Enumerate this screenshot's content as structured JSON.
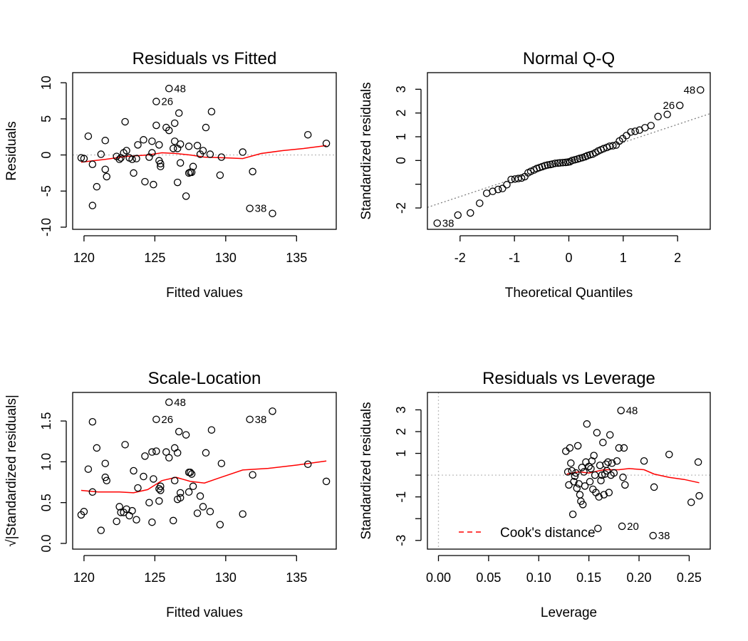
{
  "chart_data": [
    {
      "id": "rvf",
      "type": "scatter",
      "title": "Residuals vs Fitted",
      "xlabel": "Fitted values",
      "ylabel": "Residuals",
      "xlim": [
        119.2,
        137.8
      ],
      "ylim": [
        -10.3,
        11.4
      ],
      "xticks": [
        120,
        125,
        130,
        135
      ],
      "yticks": [
        -10,
        -5,
        0,
        5,
        10
      ],
      "ytick_rotated": true,
      "reference_lines": [
        {
          "axis": "h",
          "value": 0,
          "style": "dotted",
          "color": "#bebebe"
        }
      ],
      "points": [
        [
          119.8,
          -0.4
        ],
        [
          120.0,
          -0.5
        ],
        [
          120.3,
          2.6
        ],
        [
          120.6,
          -7.0
        ],
        [
          120.6,
          -1.3
        ],
        [
          120.9,
          -4.4
        ],
        [
          121.2,
          0.1
        ],
        [
          121.5,
          2.0
        ],
        [
          121.5,
          -2.0
        ],
        [
          121.6,
          -3.0
        ],
        [
          122.3,
          -0.2
        ],
        [
          122.5,
          -0.6
        ],
        [
          122.6,
          -0.4
        ],
        [
          122.8,
          0.3
        ],
        [
          122.9,
          4.6
        ],
        [
          123.0,
          0.6
        ],
        [
          123.2,
          -0.4
        ],
        [
          123.4,
          -0.6
        ],
        [
          123.5,
          -2.5
        ],
        [
          123.7,
          -0.5
        ],
        [
          123.8,
          1.4
        ],
        [
          124.2,
          2.1
        ],
        [
          124.3,
          -3.7
        ],
        [
          124.6,
          -0.3
        ],
        [
          124.8,
          1.9
        ],
        [
          124.8,
          0.3
        ],
        [
          124.9,
          -4.1
        ],
        [
          125.1,
          7.4
        ],
        [
          125.1,
          4.1
        ],
        [
          125.3,
          1.4
        ],
        [
          125.3,
          -0.8
        ],
        [
          125.4,
          -1.6
        ],
        [
          125.4,
          -1.2
        ],
        [
          125.8,
          3.8
        ],
        [
          126.0,
          9.2
        ],
        [
          126.0,
          3.4
        ],
        [
          126.3,
          0.9
        ],
        [
          126.4,
          4.4
        ],
        [
          126.4,
          1.9
        ],
        [
          126.6,
          0.9
        ],
        [
          126.6,
          -3.8
        ],
        [
          126.7,
          5.8
        ],
        [
          126.8,
          1.5
        ],
        [
          126.8,
          -1.1
        ],
        [
          127.2,
          -5.7
        ],
        [
          127.4,
          1.2
        ],
        [
          127.4,
          -2.5
        ],
        [
          127.5,
          -2.4
        ],
        [
          127.6,
          -2.4
        ],
        [
          127.7,
          -1.6
        ],
        [
          128.0,
          1.3
        ],
        [
          128.2,
          0.1
        ],
        [
          128.4,
          0.6
        ],
        [
          128.6,
          3.8
        ],
        [
          128.9,
          0.1
        ],
        [
          129.0,
          6.0
        ],
        [
          129.6,
          -2.8
        ],
        [
          129.7,
          -0.3
        ],
        [
          131.2,
          0.4
        ],
        [
          131.7,
          -7.4
        ],
        [
          131.9,
          -2.3
        ],
        [
          133.3,
          -8.1
        ],
        [
          135.8,
          2.8
        ],
        [
          137.1,
          1.6
        ]
      ],
      "labels": [
        {
          "text": "48",
          "x": 126.0,
          "y": 9.2
        },
        {
          "text": "26",
          "x": 125.1,
          "y": 7.4
        },
        {
          "text": "38",
          "x": 131.7,
          "y": -7.4
        }
      ],
      "smooth": [
        [
          119.8,
          -1.0
        ],
        [
          121.5,
          -0.6
        ],
        [
          123.0,
          -0.2
        ],
        [
          124.5,
          0.0
        ],
        [
          125.5,
          0.3
        ],
        [
          126.5,
          0.2
        ],
        [
          127.5,
          0.0
        ],
        [
          128.5,
          -0.3
        ],
        [
          130.0,
          -0.4
        ],
        [
          131.2,
          -0.5
        ],
        [
          132.5,
          0.2
        ],
        [
          134.0,
          0.6
        ],
        [
          135.5,
          0.9
        ],
        [
          137.1,
          1.3
        ]
      ]
    },
    {
      "id": "qq",
      "type": "scatter",
      "title": "Normal Q-Q",
      "xlabel": "Theoretical Quantiles",
      "ylabel": "Standardized residuals",
      "xlim": [
        -2.6,
        2.6
      ],
      "ylim": [
        -2.9,
        3.7
      ],
      "xticks": [
        -2,
        -1,
        0,
        1,
        2
      ],
      "yticks": [
        -2,
        -1,
        0,
        1,
        2,
        3
      ],
      "ytick_labels": [
        "-2",
        "",
        "0",
        "1",
        "2",
        "3"
      ],
      "ytick_rotated": true,
      "reference_lines": [
        {
          "axis": "ab",
          "intercept": 0,
          "slope": 0.76,
          "style": "dotted",
          "color": "#808080"
        }
      ],
      "points": [
        [
          -2.42,
          -2.64
        ],
        [
          -2.04,
          -2.3
        ],
        [
          -1.81,
          -2.21
        ],
        [
          -1.64,
          -1.8
        ],
        [
          -1.51,
          -1.38
        ],
        [
          -1.4,
          -1.3
        ],
        [
          -1.3,
          -1.22
        ],
        [
          -1.22,
          -1.18
        ],
        [
          -1.14,
          -1.02
        ],
        [
          -1.06,
          -0.8
        ],
        [
          -0.99,
          -0.78
        ],
        [
          -0.93,
          -0.76
        ],
        [
          -0.87,
          -0.74
        ],
        [
          -0.81,
          -0.68
        ],
        [
          -0.75,
          -0.52
        ],
        [
          -0.7,
          -0.46
        ],
        [
          -0.64,
          -0.4
        ],
        [
          -0.59,
          -0.34
        ],
        [
          -0.54,
          -0.3
        ],
        [
          -0.49,
          -0.26
        ],
        [
          -0.44,
          -0.22
        ],
        [
          -0.39,
          -0.19
        ],
        [
          -0.34,
          -0.17
        ],
        [
          -0.3,
          -0.15
        ],
        [
          -0.25,
          -0.12
        ],
        [
          -0.2,
          -0.11
        ],
        [
          -0.16,
          -0.1
        ],
        [
          -0.11,
          -0.09
        ],
        [
          -0.06,
          -0.08
        ],
        [
          -0.02,
          -0.07
        ],
        [
          0.02,
          -0.05
        ],
        [
          0.06,
          0.0
        ],
        [
          0.11,
          0.03
        ],
        [
          0.16,
          0.06
        ],
        [
          0.2,
          0.09
        ],
        [
          0.25,
          0.12
        ],
        [
          0.3,
          0.16
        ],
        [
          0.34,
          0.2
        ],
        [
          0.39,
          0.24
        ],
        [
          0.44,
          0.27
        ],
        [
          0.49,
          0.33
        ],
        [
          0.54,
          0.4
        ],
        [
          0.59,
          0.45
        ],
        [
          0.64,
          0.5
        ],
        [
          0.7,
          0.55
        ],
        [
          0.75,
          0.6
        ],
        [
          0.81,
          0.62
        ],
        [
          0.87,
          0.65
        ],
        [
          0.93,
          0.82
        ],
        [
          0.99,
          0.92
        ],
        [
          1.06,
          1.05
        ],
        [
          1.14,
          1.2
        ],
        [
          1.22,
          1.23
        ],
        [
          1.3,
          1.28
        ],
        [
          1.4,
          1.38
        ],
        [
          1.51,
          1.47
        ],
        [
          1.64,
          1.85
        ],
        [
          1.81,
          1.94
        ],
        [
          2.04,
          2.32
        ],
        [
          2.42,
          2.97
        ]
      ],
      "labels": [
        {
          "text": "48",
          "x": 2.42,
          "y": 2.97,
          "side": "left"
        },
        {
          "text": "26",
          "x": 2.04,
          "y": 2.32,
          "side": "left"
        },
        {
          "text": "38",
          "x": -2.42,
          "y": -2.64,
          "side": "right"
        }
      ]
    },
    {
      "id": "sl",
      "type": "scatter",
      "title": "Scale-Location",
      "xlabel": "Fitted values",
      "ylabel": "√|Standardized residuals|",
      "xlim": [
        119.2,
        137.8
      ],
      "ylim": [
        -0.07,
        1.85
      ],
      "xticks": [
        120,
        125,
        130,
        135
      ],
      "yticks": [
        0.0,
        0.5,
        1.0,
        1.5
      ],
      "ytick_labels": [
        "0.0",
        "0.5",
        "1.0",
        "1.5"
      ],
      "ytick_rotated": true,
      "points": [
        [
          119.8,
          0.35
        ],
        [
          120.0,
          0.39
        ],
        [
          120.3,
          0.91
        ],
        [
          120.6,
          1.49
        ],
        [
          120.6,
          0.63
        ],
        [
          120.9,
          1.17
        ],
        [
          121.2,
          0.16
        ],
        [
          121.5,
          0.98
        ],
        [
          121.5,
          0.81
        ],
        [
          121.6,
          0.77
        ],
        [
          122.3,
          0.27
        ],
        [
          122.5,
          0.45
        ],
        [
          122.6,
          0.38
        ],
        [
          122.8,
          0.38
        ],
        [
          122.9,
          1.21
        ],
        [
          123.0,
          0.42
        ],
        [
          123.2,
          0.34
        ],
        [
          123.4,
          0.4
        ],
        [
          123.5,
          0.89
        ],
        [
          123.7,
          0.29
        ],
        [
          123.8,
          0.68
        ],
        [
          124.2,
          0.82
        ],
        [
          124.3,
          1.07
        ],
        [
          124.6,
          0.5
        ],
        [
          124.8,
          1.12
        ],
        [
          124.8,
          0.26
        ],
        [
          124.9,
          0.79
        ],
        [
          125.1,
          1.52
        ],
        [
          125.1,
          1.13
        ],
        [
          125.3,
          0.67
        ],
        [
          125.3,
          0.52
        ],
        [
          125.4,
          0.7
        ],
        [
          125.4,
          0.65
        ],
        [
          125.8,
          1.12
        ],
        [
          126.0,
          1.73
        ],
        [
          126.0,
          1.05
        ],
        [
          126.3,
          0.28
        ],
        [
          126.4,
          1.17
        ],
        [
          126.4,
          0.77
        ],
        [
          126.6,
          0.54
        ],
        [
          126.6,
          1.11
        ],
        [
          126.7,
          1.37
        ],
        [
          126.8,
          0.56
        ],
        [
          126.8,
          0.62
        ],
        [
          127.2,
          1.33
        ],
        [
          127.4,
          0.63
        ],
        [
          127.4,
          0.87
        ],
        [
          127.5,
          0.87
        ],
        [
          127.6,
          0.85
        ],
        [
          127.7,
          0.7
        ],
        [
          128.0,
          0.37
        ],
        [
          128.2,
          0.58
        ],
        [
          128.4,
          0.45
        ],
        [
          128.6,
          1.11
        ],
        [
          128.9,
          0.39
        ],
        [
          129.0,
          1.39
        ],
        [
          129.6,
          0.23
        ],
        [
          129.7,
          0.98
        ],
        [
          131.2,
          0.36
        ],
        [
          131.7,
          1.52
        ],
        [
          131.9,
          0.84
        ],
        [
          133.3,
          1.62
        ],
        [
          135.8,
          0.97
        ],
        [
          137.1,
          0.76
        ]
      ],
      "labels": [
        {
          "text": "48",
          "x": 126.0,
          "y": 1.73
        },
        {
          "text": "26",
          "x": 125.1,
          "y": 1.52
        },
        {
          "text": "38",
          "x": 131.7,
          "y": 1.52
        }
      ],
      "smooth": [
        [
          119.8,
          0.65
        ],
        [
          121.0,
          0.63
        ],
        [
          122.5,
          0.63
        ],
        [
          123.5,
          0.62
        ],
        [
          124.5,
          0.66
        ],
        [
          125.5,
          0.77
        ],
        [
          126.5,
          0.81
        ],
        [
          127.5,
          0.76
        ],
        [
          128.5,
          0.74
        ],
        [
          129.5,
          0.8
        ],
        [
          131.2,
          0.9
        ],
        [
          133.0,
          0.92
        ],
        [
          135.0,
          0.96
        ],
        [
          137.1,
          1.01
        ]
      ]
    },
    {
      "id": "rvl",
      "type": "scatter",
      "title": "Residuals vs Leverage",
      "xlabel": "Leverage",
      "ylabel": "Standardized residuals",
      "xlim": [
        -0.011,
        0.271
      ],
      "ylim": [
        -3.4,
        3.8
      ],
      "xticks": [
        0.0,
        0.05,
        0.1,
        0.15,
        0.2,
        0.25
      ],
      "xtick_labels": [
        "0.00",
        "0.05",
        "0.10",
        "0.15",
        "0.20",
        "0.25"
      ],
      "yticks": [
        -3,
        -2,
        -1,
        0,
        1,
        2,
        3
      ],
      "ytick_labels": [
        "-3",
        "",
        "-1",
        "",
        "1",
        "2",
        "3"
      ],
      "ytick_rotated": true,
      "reference_lines": [
        {
          "axis": "h",
          "value": 0,
          "style": "dotted",
          "color": "#bebebe"
        },
        {
          "axis": "v",
          "value": 0,
          "style": "dotted",
          "color": "#bebebe"
        }
      ],
      "points": [
        [
          0.127,
          1.1
        ],
        [
          0.129,
          0.15
        ],
        [
          0.13,
          -0.45
        ],
        [
          0.131,
          1.25
        ],
        [
          0.132,
          0.55
        ],
        [
          0.133,
          0.2
        ],
        [
          0.134,
          -1.8
        ],
        [
          0.135,
          -0.3
        ],
        [
          0.136,
          -0.05
        ],
        [
          0.137,
          0.1
        ],
        [
          0.138,
          -0.6
        ],
        [
          0.139,
          1.35
        ],
        [
          0.14,
          -0.4
        ],
        [
          0.141,
          -0.9
        ],
        [
          0.142,
          -1.2
        ],
        [
          0.143,
          0.35
        ],
        [
          0.144,
          -1.35
        ],
        [
          0.145,
          0.15
        ],
        [
          0.146,
          -0.5
        ],
        [
          0.147,
          0.6
        ],
        [
          0.148,
          2.35
        ],
        [
          0.15,
          0.4
        ],
        [
          0.151,
          -0.3
        ],
        [
          0.152,
          0.3
        ],
        [
          0.153,
          0.65
        ],
        [
          0.154,
          -0.65
        ],
        [
          0.155,
          0.9
        ],
        [
          0.156,
          0.0
        ],
        [
          0.157,
          -0.8
        ],
        [
          0.158,
          1.95
        ],
        [
          0.159,
          -2.45
        ],
        [
          0.16,
          -1.0
        ],
        [
          0.161,
          0.45
        ],
        [
          0.162,
          -0.25
        ],
        [
          0.163,
          0.0
        ],
        [
          0.164,
          1.5
        ],
        [
          0.165,
          -0.9
        ],
        [
          0.166,
          0.05
        ],
        [
          0.167,
          0.5
        ],
        [
          0.168,
          0.2
        ],
        [
          0.169,
          0.6
        ],
        [
          0.17,
          -0.8
        ],
        [
          0.171,
          1.85
        ],
        [
          0.172,
          0.0
        ],
        [
          0.173,
          0.55
        ],
        [
          0.175,
          0.1
        ],
        [
          0.178,
          0.65
        ],
        [
          0.18,
          1.25
        ],
        [
          0.182,
          2.97
        ],
        [
          0.183,
          -2.35
        ],
        [
          0.184,
          -0.1
        ],
        [
          0.185,
          1.25
        ],
        [
          0.186,
          -0.45
        ],
        [
          0.205,
          0.65
        ],
        [
          0.215,
          -0.55
        ],
        [
          0.23,
          0.95
        ],
        [
          0.252,
          -1.25
        ],
        [
          0.259,
          0.6
        ],
        [
          0.26,
          -0.95
        ]
      ],
      "labels": [
        {
          "text": "48",
          "x": 0.182,
          "y": 2.97
        },
        {
          "text": "20",
          "x": 0.183,
          "y": -2.35
        },
        {
          "text": "38",
          "x": 0.214,
          "y": -2.78,
          "pt": true
        }
      ],
      "smooth": [
        [
          0.128,
          0.05
        ],
        [
          0.14,
          0.15
        ],
        [
          0.15,
          0.1
        ],
        [
          0.165,
          0.25
        ],
        [
          0.18,
          0.25
        ],
        [
          0.19,
          0.3
        ],
        [
          0.205,
          0.25
        ],
        [
          0.215,
          0.05
        ],
        [
          0.23,
          -0.1
        ],
        [
          0.245,
          -0.2
        ],
        [
          0.26,
          -0.35
        ]
      ],
      "legend": {
        "label": "Cook's distance",
        "color": "#ff0000",
        "style": "dashed",
        "placement": "bottom-left"
      }
    }
  ]
}
